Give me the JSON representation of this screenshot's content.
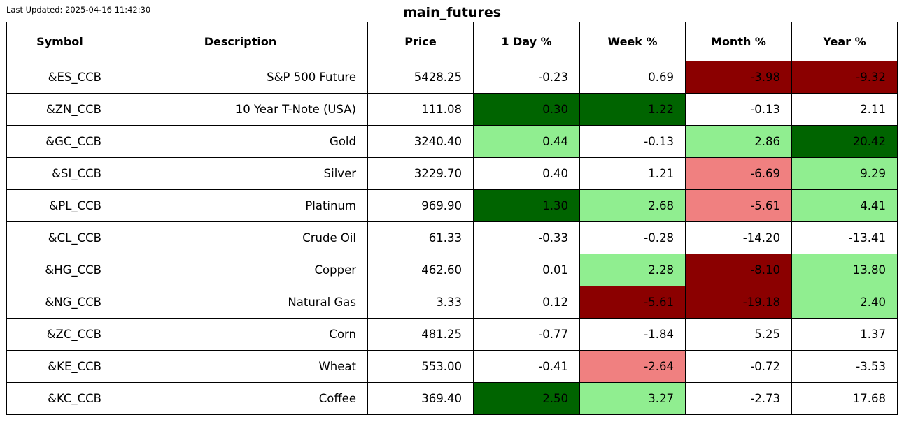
{
  "header": {
    "last_updated": "Last Updated: 2025-04-16 11:42:30"
  },
  "colors": {
    "strong_positive": "#006400",
    "mild_positive": "#90ee90",
    "mild_negative": "#f08080",
    "strong_negative": "#8b0000",
    "neutral": "#ffffff"
  },
  "chart_data": {
    "type": "table",
    "title": "main_futures",
    "columns": [
      "Symbol",
      "Description",
      "Price",
      "1 Day %",
      "Week %",
      "Month %",
      "Year %"
    ],
    "rows": [
      {
        "cells": [
          "&ES_CCB",
          "S&P 500 Future",
          "5428.25",
          "-0.23",
          "0.69",
          "-3.98",
          "-9.32"
        ],
        "fills": [
          "neutral",
          "neutral",
          "neutral",
          "neutral",
          "neutral",
          "strong_negative",
          "strong_negative"
        ]
      },
      {
        "cells": [
          "&ZN_CCB",
          "10 Year T-Note (USA)",
          "111.08",
          "0.30",
          "1.22",
          "-0.13",
          "2.11"
        ],
        "fills": [
          "neutral",
          "neutral",
          "neutral",
          "strong_positive",
          "strong_positive",
          "neutral",
          "neutral"
        ]
      },
      {
        "cells": [
          "&GC_CCB",
          "Gold",
          "3240.40",
          "0.44",
          "-0.13",
          "2.86",
          "20.42"
        ],
        "fills": [
          "neutral",
          "neutral",
          "neutral",
          "mild_positive",
          "neutral",
          "mild_positive",
          "strong_positive"
        ]
      },
      {
        "cells": [
          "&SI_CCB",
          "Silver",
          "3229.70",
          "0.40",
          "1.21",
          "-6.69",
          "9.29"
        ],
        "fills": [
          "neutral",
          "neutral",
          "neutral",
          "neutral",
          "neutral",
          "mild_negative",
          "mild_positive"
        ]
      },
      {
        "cells": [
          "&PL_CCB",
          "Platinum",
          "969.90",
          "1.30",
          "2.68",
          "-5.61",
          "4.41"
        ],
        "fills": [
          "neutral",
          "neutral",
          "neutral",
          "strong_positive",
          "mild_positive",
          "mild_negative",
          "mild_positive"
        ]
      },
      {
        "cells": [
          "&CL_CCB",
          "Crude Oil",
          "61.33",
          "-0.33",
          "-0.28",
          "-14.20",
          "-13.41"
        ],
        "fills": [
          "neutral",
          "neutral",
          "neutral",
          "neutral",
          "neutral",
          "neutral",
          "neutral"
        ]
      },
      {
        "cells": [
          "&HG_CCB",
          "Copper",
          "462.60",
          "0.01",
          "2.28",
          "-8.10",
          "13.80"
        ],
        "fills": [
          "neutral",
          "neutral",
          "neutral",
          "neutral",
          "mild_positive",
          "strong_negative",
          "mild_positive"
        ]
      },
      {
        "cells": [
          "&NG_CCB",
          "Natural Gas",
          "3.33",
          "0.12",
          "-5.61",
          "-19.18",
          "2.40"
        ],
        "fills": [
          "neutral",
          "neutral",
          "neutral",
          "neutral",
          "strong_negative",
          "strong_negative",
          "mild_positive"
        ]
      },
      {
        "cells": [
          "&ZC_CCB",
          "Corn",
          "481.25",
          "-0.77",
          "-1.84",
          "5.25",
          "1.37"
        ],
        "fills": [
          "neutral",
          "neutral",
          "neutral",
          "neutral",
          "neutral",
          "neutral",
          "neutral"
        ]
      },
      {
        "cells": [
          "&KE_CCB",
          "Wheat",
          "553.00",
          "-0.41",
          "-2.64",
          "-0.72",
          "-3.53"
        ],
        "fills": [
          "neutral",
          "neutral",
          "neutral",
          "neutral",
          "mild_negative",
          "neutral",
          "neutral"
        ]
      },
      {
        "cells": [
          "&KC_CCB",
          "Coffee",
          "369.40",
          "2.50",
          "3.27",
          "-2.73",
          "17.68"
        ],
        "fills": [
          "neutral",
          "neutral",
          "neutral",
          "strong_positive",
          "mild_positive",
          "neutral",
          "neutral"
        ]
      }
    ]
  }
}
